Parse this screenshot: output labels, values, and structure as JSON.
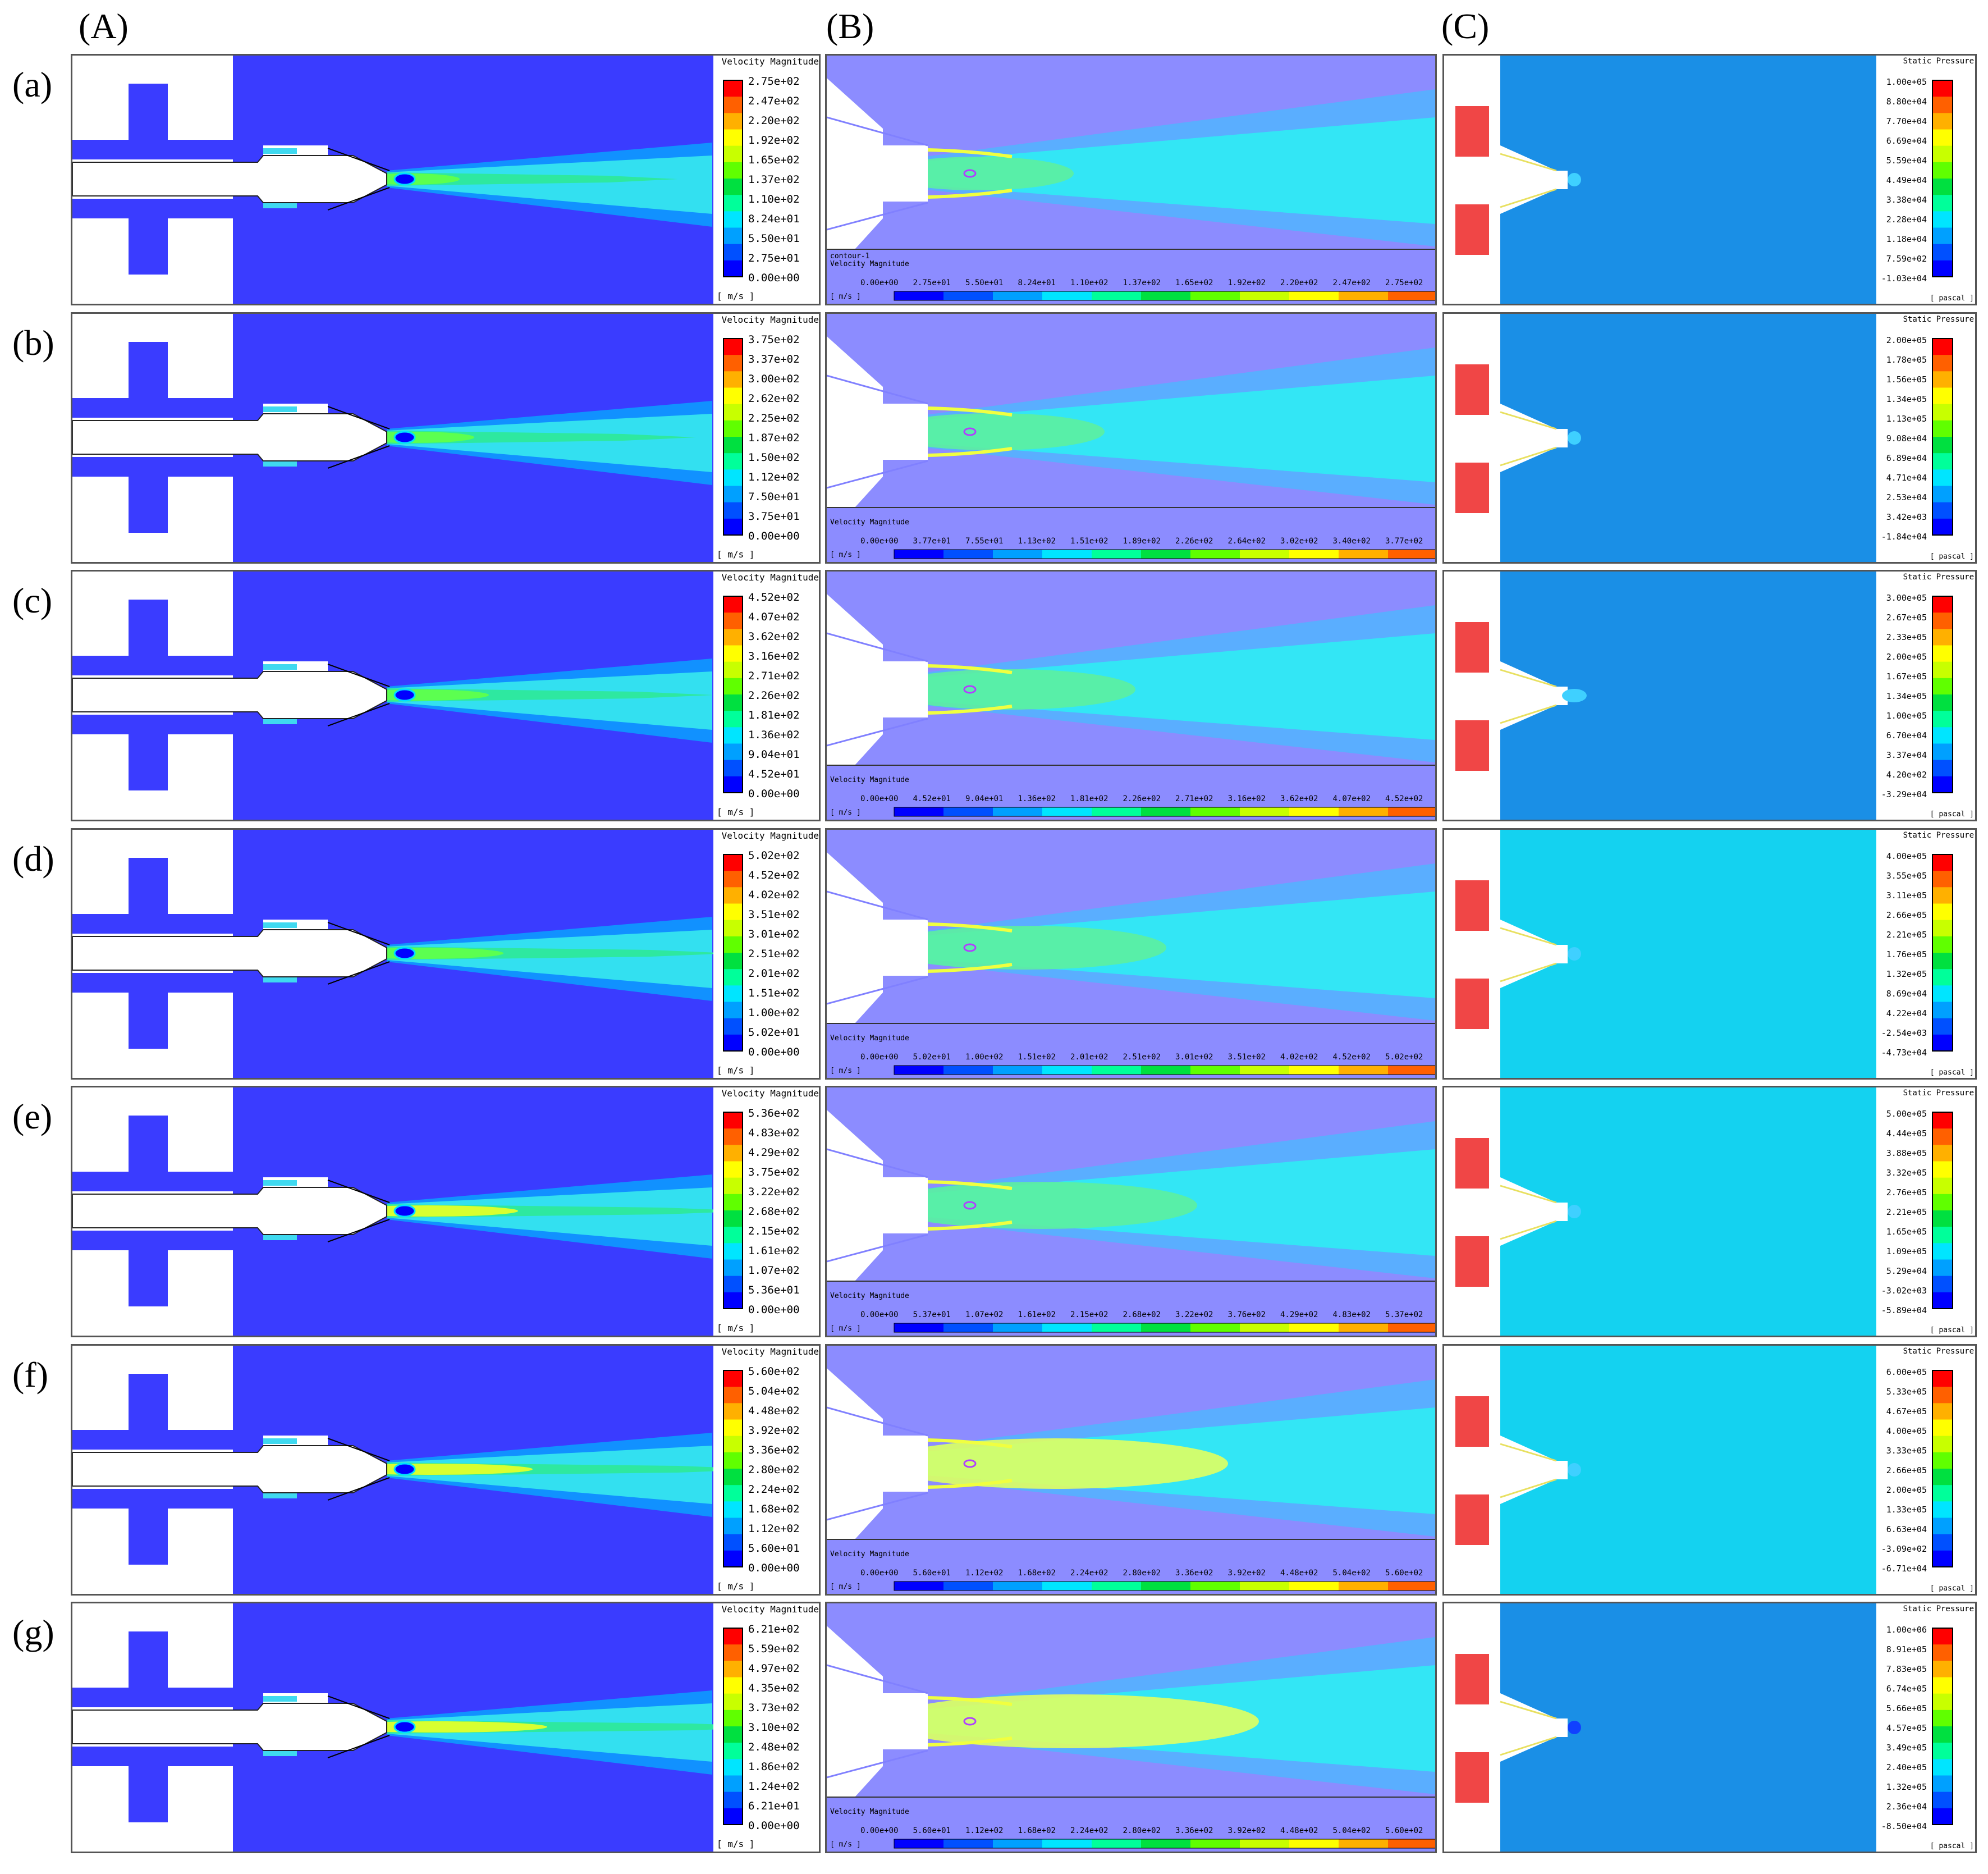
{
  "column_labels": [
    "(A)",
    "(B)",
    "(C)"
  ],
  "colorbar_a_title": "Velocity Magnitude",
  "colorbar_a_unit": "[ m/s ]",
  "colorbar_b_title": "Velocity Magnitude",
  "colorbar_b_unit": "[ m/s ]",
  "colorbar_b_contour_label": "contour-1",
  "colorbar_c_title": "Static Pressure",
  "colorbar_c_unit": "[ pascal ]",
  "colors": {
    "domain_blue": "#3a3cff",
    "lavender": "#8c8cff",
    "cyan_light": "#33e6f5",
    "pressure_blue": "#1a8fe6",
    "pressure_cyan": "#14d2f0",
    "pressure_red": "#f04646"
  },
  "rows": [
    {
      "label": "(a)",
      "velocity_ticks": [
        "2.75e+02",
        "2.47e+02",
        "2.20e+02",
        "1.92e+02",
        "1.65e+02",
        "1.37e+02",
        "1.10e+02",
        "8.24e+01",
        "5.50e+01",
        "2.75e+01",
        "0.00e+00"
      ],
      "velocity_ticks_horizontal": [
        "0.00e+00",
        "2.75e+01",
        "5.50e+01",
        "8.24e+01",
        "1.10e+02",
        "1.37e+02",
        "1.65e+02",
        "1.92e+02",
        "2.20e+02",
        "2.47e+02",
        "2.75e+02"
      ],
      "pressure_ticks": [
        "1.00e+05",
        "8.80e+04",
        "7.70e+04",
        "6.69e+04",
        "5.59e+04",
        "4.49e+04",
        "3.38e+04",
        "2.28e+04",
        "1.18e+04",
        "7.59e+02",
        "-1.03e+04"
      ],
      "pressure_bg": "#1a8fe6",
      "show_contour_label": true
    },
    {
      "label": "(b)",
      "velocity_ticks": [
        "3.75e+02",
        "3.37e+02",
        "3.00e+02",
        "2.62e+02",
        "2.25e+02",
        "1.87e+02",
        "1.50e+02",
        "1.12e+02",
        "7.50e+01",
        "3.75e+01",
        "0.00e+00"
      ],
      "velocity_ticks_horizontal": [
        "0.00e+00",
        "3.77e+01",
        "7.55e+01",
        "1.13e+02",
        "1.51e+02",
        "1.89e+02",
        "2.26e+02",
        "2.64e+02",
        "3.02e+02",
        "3.40e+02",
        "3.77e+02"
      ],
      "pressure_ticks": [
        "2.00e+05",
        "1.78e+05",
        "1.56e+05",
        "1.34e+05",
        "1.13e+05",
        "9.08e+04",
        "6.89e+04",
        "4.71e+04",
        "2.53e+04",
        "3.42e+03",
        "-1.84e+04"
      ],
      "pressure_bg": "#1a8fe6",
      "show_contour_label": false
    },
    {
      "label": "(c)",
      "velocity_ticks": [
        "4.52e+02",
        "4.07e+02",
        "3.62e+02",
        "3.16e+02",
        "2.71e+02",
        "2.26e+02",
        "1.81e+02",
        "1.36e+02",
        "9.04e+01",
        "4.52e+01",
        "0.00e+00"
      ],
      "velocity_ticks_horizontal": [
        "0.00e+00",
        "4.52e+01",
        "9.04e+01",
        "1.36e+02",
        "1.81e+02",
        "2.26e+02",
        "2.71e+02",
        "3.16e+02",
        "3.62e+02",
        "4.07e+02",
        "4.52e+02"
      ],
      "pressure_ticks": [
        "3.00e+05",
        "2.67e+05",
        "2.33e+05",
        "2.00e+05",
        "1.67e+05",
        "1.34e+05",
        "1.00e+05",
        "6.70e+04",
        "3.37e+04",
        "4.20e+02",
        "-3.29e+04"
      ],
      "pressure_bg": "#1a8fe6",
      "show_contour_label": false
    },
    {
      "label": "(d)",
      "velocity_ticks": [
        "5.02e+02",
        "4.52e+02",
        "4.02e+02",
        "3.51e+02",
        "3.01e+02",
        "2.51e+02",
        "2.01e+02",
        "1.51e+02",
        "1.00e+02",
        "5.02e+01",
        "0.00e+00"
      ],
      "velocity_ticks_horizontal": [
        "0.00e+00",
        "5.02e+01",
        "1.00e+02",
        "1.51e+02",
        "2.01e+02",
        "2.51e+02",
        "3.01e+02",
        "3.51e+02",
        "4.02e+02",
        "4.52e+02",
        "5.02e+02"
      ],
      "pressure_ticks": [
        "4.00e+05",
        "3.55e+05",
        "3.11e+05",
        "2.66e+05",
        "2.21e+05",
        "1.76e+05",
        "1.32e+05",
        "8.69e+04",
        "4.22e+04",
        "-2.54e+03",
        "-4.73e+04"
      ],
      "pressure_bg": "#14d2f0",
      "show_contour_label": false
    },
    {
      "label": "(e)",
      "velocity_ticks": [
        "5.36e+02",
        "4.83e+02",
        "4.29e+02",
        "3.75e+02",
        "3.22e+02",
        "2.68e+02",
        "2.15e+02",
        "1.61e+02",
        "1.07e+02",
        "5.36e+01",
        "0.00e+00"
      ],
      "velocity_ticks_horizontal": [
        "0.00e+00",
        "5.37e+01",
        "1.07e+02",
        "1.61e+02",
        "2.15e+02",
        "2.68e+02",
        "3.22e+02",
        "3.76e+02",
        "4.29e+02",
        "4.83e+02",
        "5.37e+02"
      ],
      "pressure_ticks": [
        "5.00e+05",
        "4.44e+05",
        "3.88e+05",
        "3.32e+05",
        "2.76e+05",
        "2.21e+05",
        "1.65e+05",
        "1.09e+05",
        "5.29e+04",
        "-3.02e+03",
        "-5.89e+04"
      ],
      "pressure_bg": "#14d2f0",
      "show_contour_label": false
    },
    {
      "label": "(f)",
      "velocity_ticks": [
        "5.60e+02",
        "5.04e+02",
        "4.48e+02",
        "3.92e+02",
        "3.36e+02",
        "2.80e+02",
        "2.24e+02",
        "1.68e+02",
        "1.12e+02",
        "5.60e+01",
        "0.00e+00"
      ],
      "velocity_ticks_horizontal": [
        "0.00e+00",
        "5.60e+01",
        "1.12e+02",
        "1.68e+02",
        "2.24e+02",
        "2.80e+02",
        "3.36e+02",
        "3.92e+02",
        "4.48e+02",
        "5.04e+02",
        "5.60e+02"
      ],
      "pressure_ticks": [
        "6.00e+05",
        "5.33e+05",
        "4.67e+05",
        "4.00e+05",
        "3.33e+05",
        "2.66e+05",
        "2.00e+05",
        "1.33e+05",
        "6.63e+04",
        "-3.09e+02",
        "-6.71e+04"
      ],
      "pressure_bg": "#14d2f0",
      "show_contour_label": false
    },
    {
      "label": "(g)",
      "velocity_ticks": [
        "6.21e+02",
        "5.59e+02",
        "4.97e+02",
        "4.35e+02",
        "3.73e+02",
        "3.10e+02",
        "2.48e+02",
        "1.86e+02",
        "1.24e+02",
        "6.21e+01",
        "0.00e+00"
      ],
      "velocity_ticks_horizontal": [
        "0.00e+00",
        "5.60e+01",
        "1.12e+02",
        "1.68e+02",
        "2.24e+02",
        "2.80e+02",
        "3.36e+02",
        "3.92e+02",
        "4.48e+02",
        "5.04e+02",
        "5.60e+02"
      ],
      "pressure_ticks": [
        "1.00e+06",
        "8.91e+05",
        "7.83e+05",
        "6.74e+05",
        "5.66e+05",
        "4.57e+05",
        "3.49e+05",
        "2.40e+05",
        "1.32e+05",
        "2.36e+04",
        "-8.50e+04"
      ],
      "pressure_bg": "#1a8fe6",
      "show_contour_label": false
    }
  ]
}
